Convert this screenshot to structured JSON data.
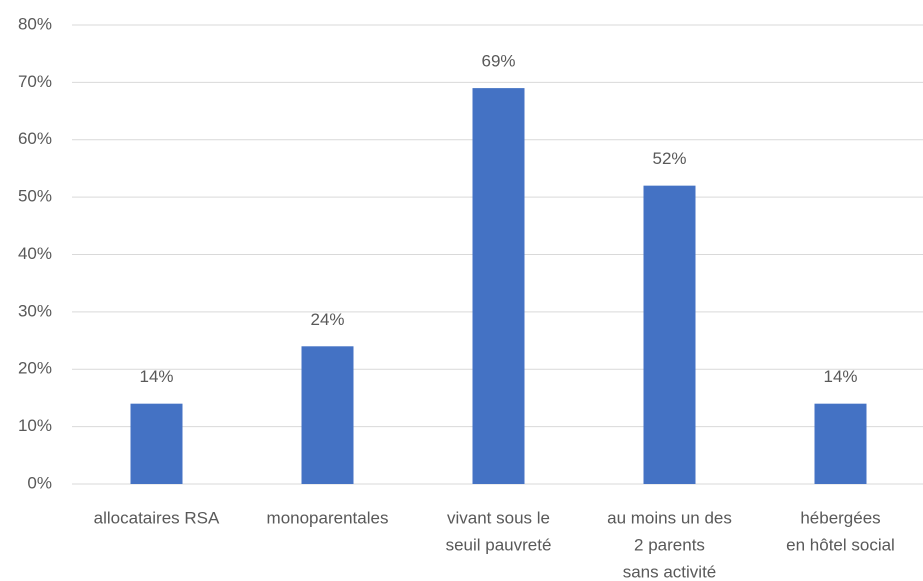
{
  "chart_data": {
    "type": "bar",
    "categories": [
      [
        "allocataires RSA"
      ],
      [
        "monoparentales"
      ],
      [
        "vivant sous le",
        "seuil pauvreté"
      ],
      [
        "au moins un des",
        "2 parents",
        "sans activité"
      ],
      [
        "hébergées",
        "en hôtel social"
      ]
    ],
    "values": [
      14,
      24,
      69,
      52,
      14
    ],
    "value_labels": [
      "14%",
      "24%",
      "69%",
      "52%",
      "14%"
    ],
    "color": "#4472c4",
    "ylim": [
      0,
      80
    ],
    "yticks": [
      {
        "value": 0,
        "label": "0%"
      },
      {
        "value": 10,
        "label": "10%"
      },
      {
        "value": 20,
        "label": "20%"
      },
      {
        "value": 30,
        "label": "30%"
      },
      {
        "value": 40,
        "label": "40%"
      },
      {
        "value": 50,
        "label": "50%"
      },
      {
        "value": 60,
        "label": "60%"
      },
      {
        "value": 70,
        "label": "70%"
      },
      {
        "value": 80,
        "label": "80%"
      }
    ],
    "grid": true
  }
}
